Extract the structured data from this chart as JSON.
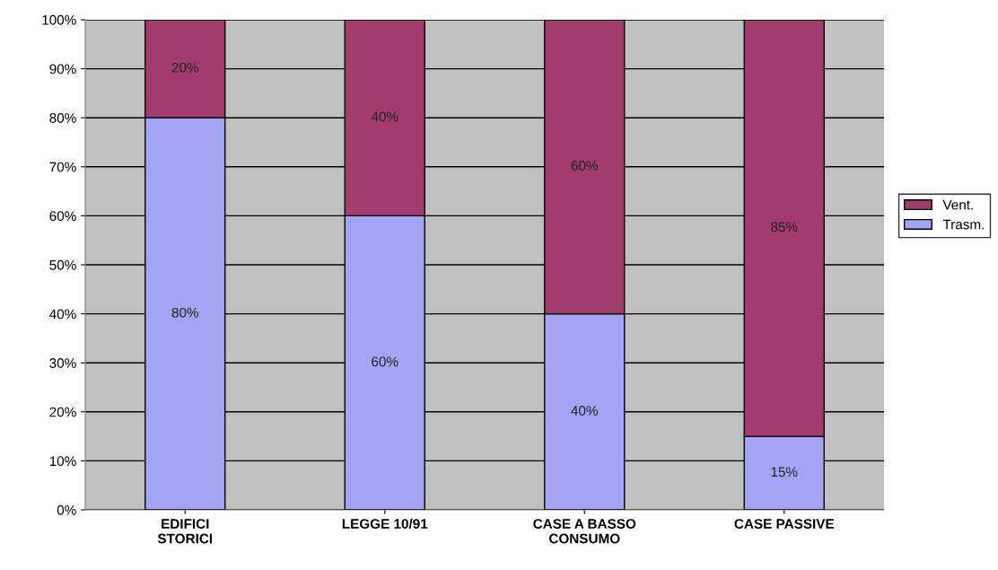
{
  "chart_data": {
    "type": "bar",
    "stacked": true,
    "categories": [
      "EDIFICI\nSTORICI",
      "LEGGE 10/91",
      "CASE A BASSO\nCONSUMO",
      "CASE PASSIVE"
    ],
    "series": [
      {
        "name": "Trasm.",
        "color": "#a4a4f4",
        "values": [
          80,
          60,
          40,
          15
        ],
        "value_labels": [
          "80%",
          "60%",
          "40%",
          "15%"
        ]
      },
      {
        "name": "Vent.",
        "color": "#a13c6c",
        "values": [
          20,
          40,
          60,
          85
        ],
        "value_labels": [
          "20%",
          "40%",
          "60%",
          "85%"
        ]
      }
    ],
    "ylim": [
      0,
      100
    ],
    "yticks": [
      {
        "value": 0,
        "label": "0%"
      },
      {
        "value": 10,
        "label": "10%"
      },
      {
        "value": 20,
        "label": "20%"
      },
      {
        "value": 30,
        "label": "30%"
      },
      {
        "value": 40,
        "label": "40%"
      },
      {
        "value": 50,
        "label": "50%"
      },
      {
        "value": 60,
        "label": "60%"
      },
      {
        "value": 70,
        "label": "70%"
      },
      {
        "value": 80,
        "label": "80%"
      },
      {
        "value": 90,
        "label": "90%"
      },
      {
        "value": 100,
        "label": "100%"
      }
    ],
    "grid": "y",
    "legend": "right"
  }
}
